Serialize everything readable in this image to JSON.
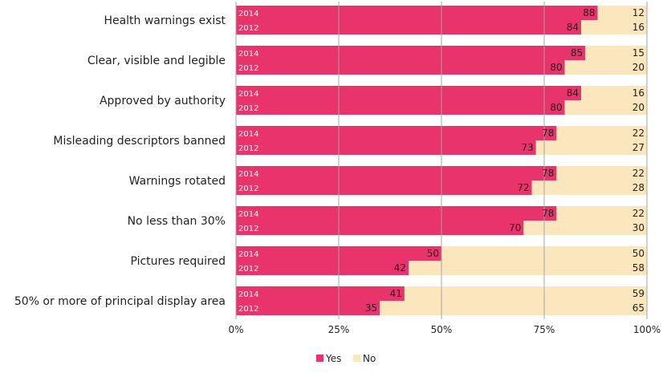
{
  "chart_data": {
    "type": "bar",
    "orientation": "horizontal",
    "stacked": true,
    "percent_stacked": true,
    "categories": [
      "Health warnings exist",
      "Clear, visible and legible",
      "Approved by authority",
      "Misleading descriptors banned",
      "Warnings rotated",
      "No less than 30%",
      "Pictures required",
      "50% or more of principal display area"
    ],
    "years": [
      "2014",
      "2012"
    ],
    "series": [
      {
        "name": "Yes",
        "color": "#e8336b",
        "values_2014": [
          88,
          85,
          84,
          78,
          78,
          78,
          50,
          41
        ],
        "values_2012": [
          84,
          80,
          80,
          73,
          72,
          70,
          42,
          35
        ]
      },
      {
        "name": "No",
        "color": "#fbe6bd",
        "values_2014": [
          12,
          15,
          16,
          22,
          22,
          22,
          50,
          59
        ],
        "values_2012": [
          16,
          20,
          20,
          27,
          28,
          30,
          58,
          65
        ]
      }
    ],
    "xlim": [
      0,
      100
    ],
    "xticks": [
      "0%",
      "25%",
      "50%",
      "75%",
      "100%"
    ],
    "grid": true,
    "legend_position": "bottom-center"
  }
}
